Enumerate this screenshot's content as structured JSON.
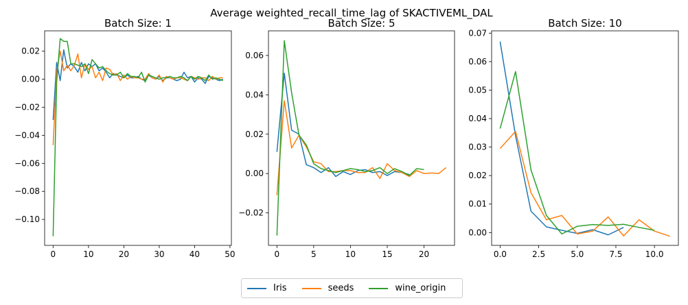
{
  "figure_title": "Average weighted_recall_time_lag of SKACTIVEML_DAL",
  "series_styles": [
    {
      "name": "Iris",
      "color": "#1f77b4"
    },
    {
      "name": "seeds",
      "color": "#ff7f0e"
    },
    {
      "name": "wine_origin",
      "color": "#2ca02c"
    }
  ],
  "chart_data": [
    {
      "type": "line",
      "title": "Batch Size: 1",
      "xlabel": "",
      "ylabel": "",
      "xlim": [
        -2.4,
        50.4
      ],
      "ylim": [
        -0.1185,
        0.0345
      ],
      "xticks": [
        0,
        10,
        20,
        30,
        40,
        50
      ],
      "xtick_labels": [
        "0",
        "10",
        "20",
        "30",
        "40",
        "50"
      ],
      "yticks": [
        -0.1,
        -0.08,
        -0.06,
        -0.04,
        -0.02,
        0.0,
        0.02
      ],
      "ytick_labels": [
        "−0.10",
        "−0.08",
        "−0.06",
        "−0.04",
        "−0.02",
        "0.00",
        "0.02"
      ],
      "series": [
        {
          "name": "Iris",
          "x": [
            0,
            1,
            2,
            3,
            4,
            5,
            6,
            7,
            8,
            9,
            10,
            11,
            12,
            13,
            14,
            15,
            16,
            17,
            18,
            19,
            20,
            21,
            22,
            23,
            24,
            25,
            26,
            27,
            28,
            29,
            30,
            31,
            32,
            33,
            34,
            35,
            36,
            37,
            38,
            39,
            40,
            41,
            42,
            43,
            44,
            45,
            46,
            47,
            48
          ],
          "values": [
            -0.029,
            0.012,
            -0.001,
            0.021,
            0.008,
            0.011,
            0.009,
            0.005,
            0.012,
            0.006,
            0.011,
            0.009,
            0.011,
            0.006,
            0.008,
            0.005,
            0.001,
            0.004,
            0.003,
            0.002,
            0.001,
            0.003,
            0.001,
            0.001,
            0.002,
            0.0,
            -0.001,
            0.003,
            0.001,
            0.0,
            0.002,
            -0.001,
            0.001,
            0.001,
            0.0,
            -0.001,
            0.0,
            0.005,
            0.001,
            0.002,
            -0.002,
            0.001,
            0.0,
            -0.003,
            0.002,
            0.001,
            0.0,
            -0.001,
            0.0
          ]
        },
        {
          "name": "seeds",
          "x": [
            0,
            1,
            2,
            3,
            4,
            5,
            6,
            7,
            8,
            9,
            10,
            11,
            12,
            13,
            14,
            15,
            16,
            17,
            18,
            19,
            20,
            21,
            22,
            23,
            24,
            25,
            26,
            27,
            28,
            29,
            30,
            31,
            32,
            33,
            34,
            35,
            36,
            37,
            38,
            39,
            40,
            41,
            42,
            43,
            44,
            45,
            46,
            47,
            48
          ],
          "values": [
            -0.047,
            0.005,
            0.02,
            0.006,
            0.01,
            0.006,
            0.01,
            0.018,
            0.001,
            0.011,
            0.007,
            0.009,
            0.001,
            0.005,
            -0.001,
            0.008,
            0.007,
            0.003,
            0.004,
            -0.001,
            0.003,
            0.0,
            0.002,
            0.001,
            0.001,
            0.0,
            0.0,
            0.004,
            0.001,
            0.0,
            0.003,
            -0.002,
            0.002,
            0.001,
            0.0,
            0.001,
            0.001,
            0.0,
            -0.001,
            0.002,
            0.001,
            0.0,
            0.001,
            0.001,
            -0.001,
            0.002,
            0.0,
            0.001,
            0.001
          ]
        },
        {
          "name": "wine_origin",
          "x": [
            0,
            1,
            2,
            3,
            4,
            5,
            6,
            7,
            8,
            9,
            10,
            11,
            12,
            13,
            14,
            15,
            16,
            17,
            18,
            19,
            20,
            21,
            22,
            23,
            24,
            25,
            26,
            27,
            28,
            29,
            30,
            31,
            32,
            33,
            34,
            35,
            36,
            37,
            38,
            39,
            40,
            41,
            42,
            43,
            44,
            45,
            46,
            47,
            48
          ],
          "values": [
            -0.112,
            -0.002,
            0.029,
            0.027,
            0.027,
            0.011,
            0.011,
            0.01,
            0.009,
            0.011,
            0.004,
            0.014,
            0.011,
            0.008,
            0.009,
            0.006,
            0.004,
            0.003,
            0.003,
            0.005,
            0.001,
            0.004,
            0.002,
            0.002,
            0.001,
            0.005,
            -0.002,
            0.003,
            0.002,
            0.001,
            0.0,
            0.001,
            0.001,
            0.002,
            0.001,
            0.001,
            0.002,
            0.001,
            -0.001,
            0.002,
            0.0,
            0.002,
            0.001,
            -0.001,
            0.003,
            0.0,
            0.001,
            0.0,
            -0.001
          ]
        }
      ]
    },
    {
      "type": "line",
      "title": "Batch Size: 5",
      "xlabel": "",
      "ylabel": "",
      "xlim": [
        -1.15,
        24.15
      ],
      "ylim": [
        -0.0365,
        0.0725
      ],
      "xticks": [
        0,
        5,
        10,
        15,
        20
      ],
      "xtick_labels": [
        "0",
        "5",
        "10",
        "15",
        "20"
      ],
      "yticks": [
        -0.02,
        0.0,
        0.02,
        0.04,
        0.06
      ],
      "ytick_labels": [
        "−0.02",
        "0.00",
        "0.02",
        "0.04",
        "0.06"
      ],
      "series": [
        {
          "name": "Iris",
          "x": [
            0,
            1,
            2,
            3,
            4,
            5,
            6,
            7,
            8,
            9,
            10,
            11,
            12,
            13,
            14,
            15,
            16,
            17,
            18
          ],
          "values": [
            0.011,
            0.051,
            0.022,
            0.02,
            0.0045,
            0.003,
            0.0005,
            0.003,
            -0.0015,
            0.001,
            -0.0005,
            0.0015,
            0.002,
            0.0005,
            0.001,
            -0.001,
            0.001,
            0.0005,
            -0.0005
          ]
        },
        {
          "name": "seeds",
          "x": [
            0,
            1,
            2,
            3,
            4,
            5,
            6,
            7,
            8,
            9,
            10,
            11,
            12,
            13,
            14,
            15,
            16,
            17,
            18,
            19,
            20,
            21,
            22,
            23
          ],
          "values": [
            -0.011,
            0.037,
            0.013,
            0.0195,
            0.0135,
            0.006,
            0.005,
            0.001,
            0.001,
            0.0015,
            0.0015,
            0.0005,
            0.0005,
            0.003,
            -0.0025,
            0.005,
            0.0015,
            0.0005,
            -0.0015,
            0.0015,
            0.0,
            0.0003,
            0.0,
            0.003
          ]
        },
        {
          "name": "wine_origin",
          "x": [
            0,
            1,
            2,
            3,
            4,
            5,
            6,
            7,
            8,
            9,
            10,
            11,
            12,
            13,
            14,
            15,
            16,
            17,
            18,
            19,
            20
          ],
          "values": [
            -0.0315,
            0.0675,
            0.041,
            0.0195,
            0.0145,
            0.005,
            0.0025,
            0.0015,
            0.0005,
            0.0015,
            0.0025,
            0.002,
            0.001,
            0.0015,
            0.003,
            0.0,
            0.0025,
            0.001,
            -0.001,
            0.0025,
            0.002
          ]
        }
      ]
    },
    {
      "type": "line",
      "title": "Batch Size: 10",
      "xlabel": "",
      "ylabel": "",
      "xlim": [
        -0.55,
        11.55
      ],
      "ylim": [
        -0.0045,
        0.0708
      ],
      "xticks": [
        0,
        2.5,
        5,
        7.5,
        10
      ],
      "xtick_labels": [
        "0.0",
        "2.5",
        "5.0",
        "7.5",
        "10.0"
      ],
      "yticks": [
        0.0,
        0.01,
        0.02,
        0.03,
        0.04,
        0.05,
        0.06,
        0.07
      ],
      "ytick_labels": [
        "0.00",
        "0.01",
        "0.02",
        "0.03",
        "0.04",
        "0.05",
        "0.06",
        "0.07"
      ],
      "series": [
        {
          "name": "Iris",
          "x": [
            0,
            1,
            2,
            3,
            4,
            5,
            6,
            7,
            8
          ],
          "values": [
            0.067,
            0.034,
            0.0075,
            0.002,
            0.0008,
            -0.0003,
            0.001,
            -0.0008,
            0.0018
          ]
        },
        {
          "name": "seeds",
          "x": [
            0,
            1,
            2,
            3,
            4,
            5,
            6,
            7,
            8,
            9,
            10,
            11
          ],
          "values": [
            0.0295,
            0.0355,
            0.014,
            0.0045,
            0.006,
            -0.0005,
            0.0005,
            0.0055,
            -0.0012,
            0.0045,
            0.0005,
            -0.0013
          ]
        },
        {
          "name": "wine_origin",
          "x": [
            0,
            1,
            2,
            3,
            4,
            5,
            6,
            7,
            8,
            9,
            10
          ],
          "values": [
            0.0365,
            0.0565,
            0.022,
            0.006,
            -0.0005,
            0.0022,
            0.0028,
            0.0025,
            0.0029,
            0.0018,
            0.0008
          ]
        }
      ]
    }
  ]
}
